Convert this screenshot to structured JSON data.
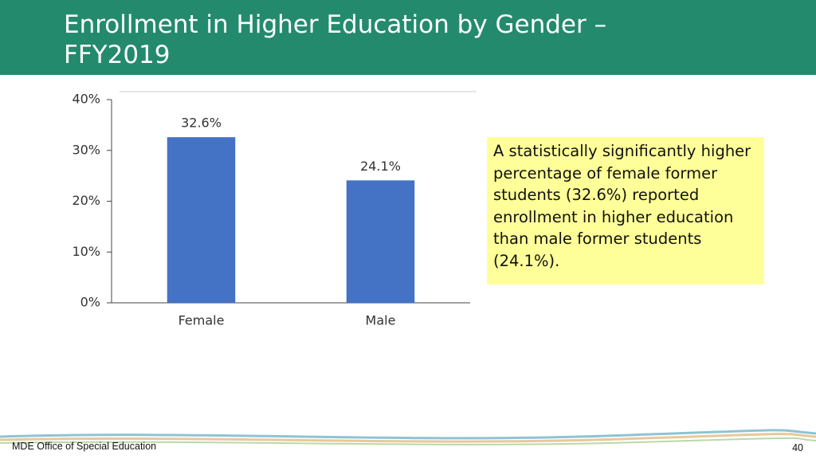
{
  "chart_data": {
    "type": "bar",
    "title": "Enrollment in Higher Education by Gender – FFY2019",
    "categories": [
      "Female",
      "Male"
    ],
    "values": [
      32.6,
      24.1
    ],
    "value_labels": [
      "32.6%",
      "24.1%"
    ],
    "color": "#4472c4",
    "ylim": [
      0,
      40
    ],
    "yticks": [
      {
        "value": 0,
        "label": "0%"
      },
      {
        "value": 10,
        "label": "10%"
      },
      {
        "value": 20,
        "label": "20%"
      },
      {
        "value": 30,
        "label": "30%"
      },
      {
        "value": 40,
        "label": "40%"
      }
    ],
    "grid": false
  },
  "callout": "A statistically significantly higher percentage of female former students (32.6%) reported enrollment in higher education than male former students (24.1%).",
  "footer": "MDE Office of Special Education",
  "page_number": 40
}
